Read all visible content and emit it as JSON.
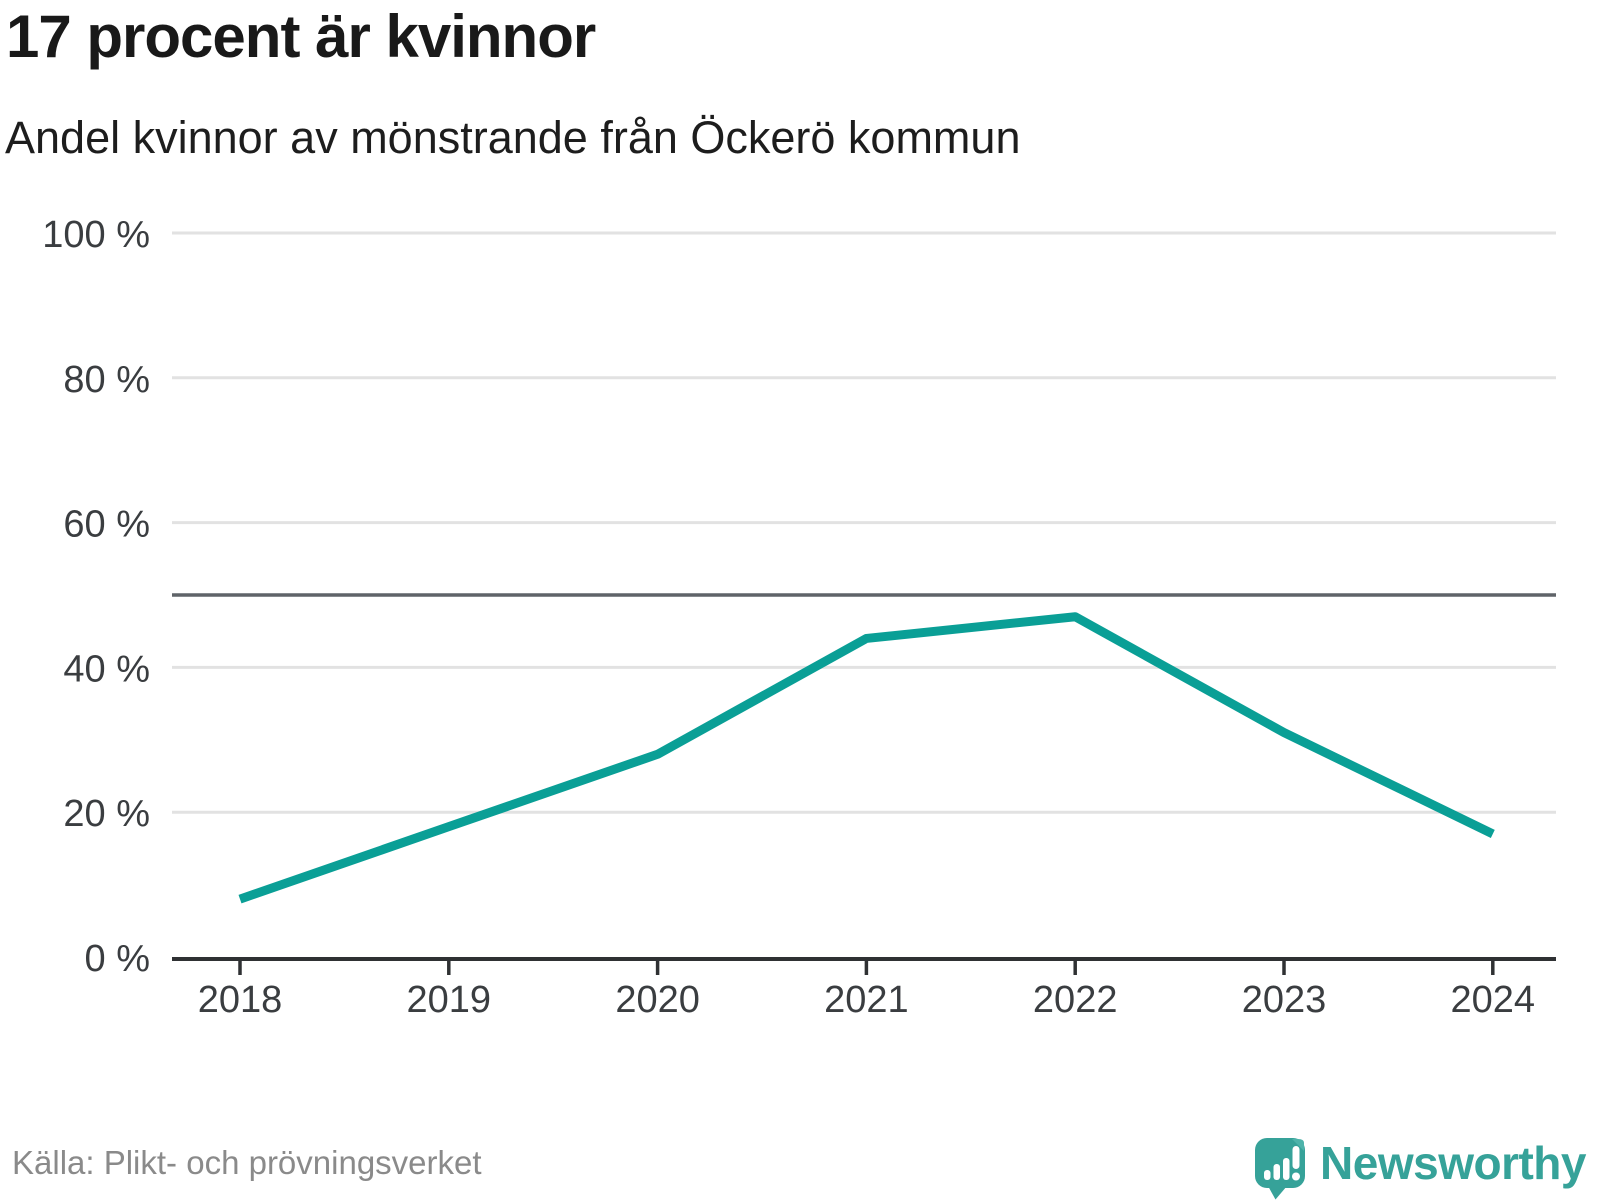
{
  "header": {
    "title": "17 procent är kvinnor",
    "subtitle": "Andel kvinnor av mönstrande från Öckerö kommun"
  },
  "footer": {
    "source": "Källa: Plikt- och prövningsverket",
    "logo_text": "Newsworthy"
  },
  "colors": {
    "line": "#0a9f96",
    "grid": "#e2e2e2",
    "reference": "#5f6368",
    "axis": "#2f3133",
    "brand": "#36a299",
    "brand_light": "#4db3aa"
  },
  "chart_data": {
    "type": "line",
    "title": "17 procent är kvinnor",
    "subtitle": "Andel kvinnor av mönstrande från Öckerö kommun",
    "categories": [
      "2018",
      "2019",
      "2020",
      "2021",
      "2022",
      "2023",
      "2024"
    ],
    "series": [
      {
        "name": "Andel kvinnor av mönstrande",
        "values": [
          8,
          18,
          28,
          44,
          47,
          31,
          17
        ]
      }
    ],
    "unit": "%",
    "ylim": [
      0,
      100
    ],
    "yticks": [
      {
        "value": 0,
        "label": "0 %"
      },
      {
        "value": 20,
        "label": "20 %"
      },
      {
        "value": 40,
        "label": "40 %"
      },
      {
        "value": 60,
        "label": "60 %"
      },
      {
        "value": 80,
        "label": "80 %"
      },
      {
        "value": 100,
        "label": "100 %"
      }
    ],
    "reference_line": {
      "value": 50
    },
    "grid": true,
    "legend": "none",
    "source": "Källa: Plikt- och prövningsverket"
  }
}
